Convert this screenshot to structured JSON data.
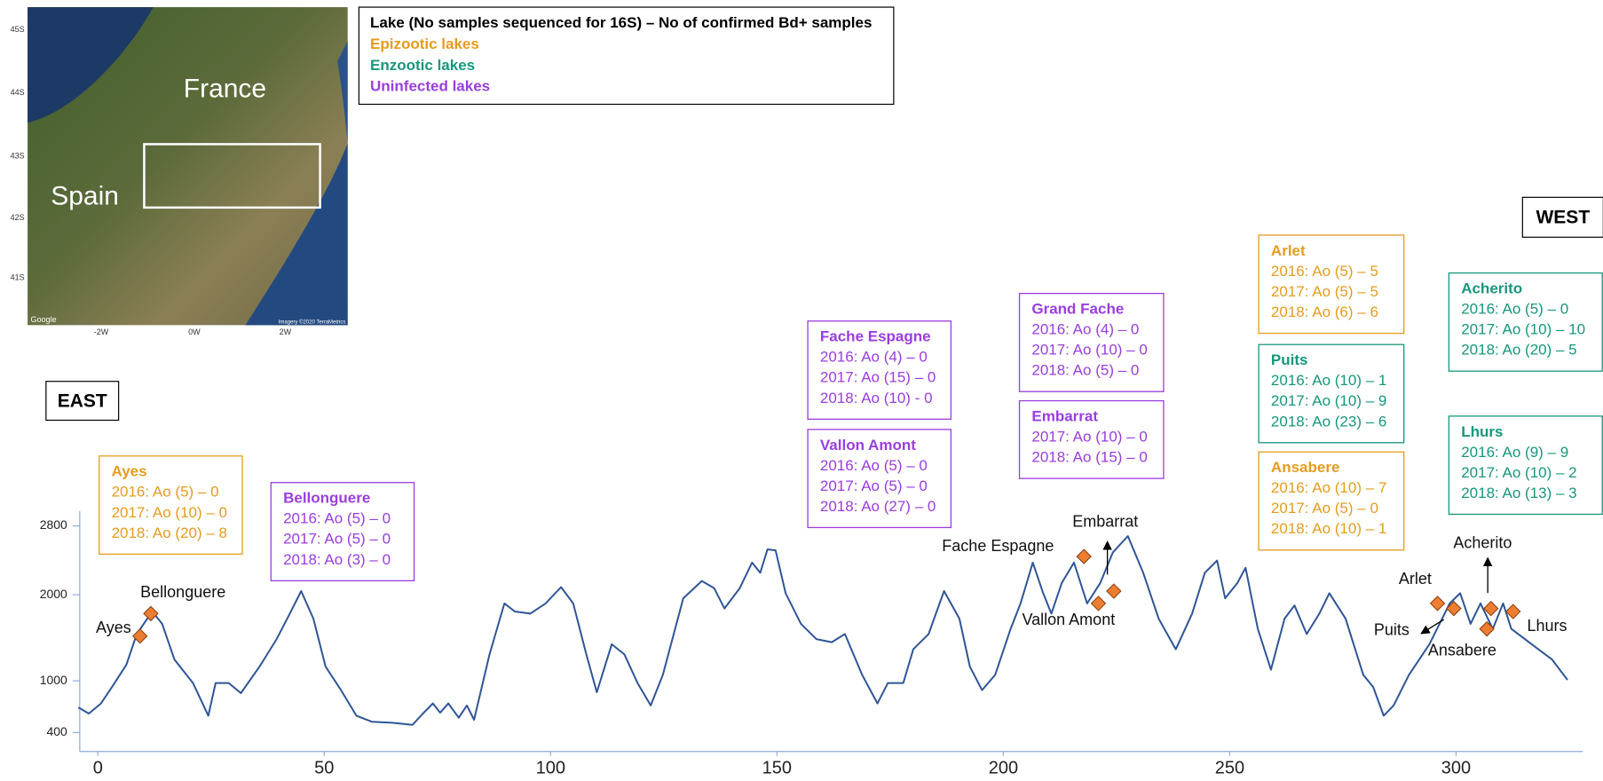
{
  "map": {
    "countries": [
      "France",
      "Spain"
    ],
    "lat_ticks": [
      "45S",
      "44S",
      "43S",
      "42S",
      "41S"
    ],
    "lon_ticks": [
      "-2W",
      "0W",
      "2W"
    ],
    "attribution": [
      "Google",
      "Imagery ©2020 TerraMetrics"
    ]
  },
  "legend": {
    "title": "Lake (No samples sequenced for 16S) – No of confirmed Bd+ samples",
    "items": [
      {
        "label": "Epizootic lakes",
        "color": "#e59c1f"
      },
      {
        "label": "Enzootic lakes",
        "color": "#17977c"
      },
      {
        "label": "Uninfected lakes",
        "color": "#9b3de0"
      }
    ]
  },
  "directions": {
    "east": "EAST",
    "west": "WEST"
  },
  "lakes": [
    {
      "name": "Ayes",
      "color": "#e59c1f",
      "lines": [
        "2016: Ao (5) – 0",
        "2017: Ao (10) – 0",
        "2018: Ao (20) – 8"
      ]
    },
    {
      "name": "Bellonguere",
      "color": "#9b3de0",
      "lines": [
        "2016: Ao (5) – 0",
        "2017: Ao (5) – 0",
        "2018: Ao (3) – 0"
      ]
    },
    {
      "name": "Fache Espagne",
      "color": "#9b3de0",
      "lines": [
        "2016: Ao (4) – 0",
        "2017: Ao (15) – 0",
        "2018: Ao (10) - 0"
      ]
    },
    {
      "name": "Vallon Amont",
      "color": "#9b3de0",
      "lines": [
        "2016: Ao (5) – 0",
        "2017: Ao (5) – 0",
        "2018: Ao (27) – 0"
      ]
    },
    {
      "name": "Grand Fache",
      "color": "#9b3de0",
      "lines": [
        "2016: Ao (4) – 0",
        "2017: Ao (10) – 0",
        "2018: Ao (5) – 0"
      ]
    },
    {
      "name": "Embarrat",
      "color": "#9b3de0",
      "lines": [
        "2017: Ao (10) – 0",
        "2018: Ao (15) – 0"
      ]
    },
    {
      "name": "Arlet",
      "color": "#e59c1f",
      "lines": [
        "2016: Ao (5) – 5",
        "2017: Ao (5) – 5",
        "2018: Ao (6) – 6"
      ]
    },
    {
      "name": "Puits",
      "color": "#17977c",
      "lines": [
        "2016: Ao (10) – 1",
        "2017: Ao (10) – 9",
        "2018: Ao (23) – 6"
      ]
    },
    {
      "name": "Ansabere",
      "color": "#e59c1f",
      "lines": [
        "2016: Ao (10) – 7",
        "2017: Ao (5) – 0",
        "2018: Ao (10) – 1"
      ]
    },
    {
      "name": "Acherito",
      "color": "#17977c",
      "lines": [
        "2016: Ao (5) – 0",
        "2017: Ao (10) – 10",
        "2018: Ao (20) – 5"
      ]
    },
    {
      "name": "Lhurs",
      "color": "#17977c",
      "lines": [
        "2016: Ao (9) – 9",
        "2017: Ao (10) – 2",
        "2018: Ao (13) – 3"
      ]
    }
  ],
  "chart_data": {
    "type": "line",
    "xlim": [
      -4,
      328
    ],
    "ylim": [
      180,
      2970
    ],
    "xticks": [
      0,
      50,
      100,
      150,
      200,
      250,
      300
    ],
    "yticks": [
      400,
      1000,
      2000,
      2800
    ],
    "series": [
      {
        "color": "#2f5597",
        "x": [
          -4.3,
          -2.0,
          0.7,
          3.4,
          6.3,
          8.6,
          12.0,
          14.2,
          16.9,
          21.0,
          24.4,
          26.0,
          28.9,
          31.6,
          35.7,
          39.5,
          42.4,
          44.9,
          47.6,
          50.3,
          53.7,
          57.1,
          60.5,
          65.0,
          69.5,
          71.8,
          74.0,
          75.6,
          77.4,
          79.7,
          81.5,
          83.1,
          86.5,
          89.8,
          92.1,
          95.5,
          98.9,
          102.3,
          105.0,
          107.9,
          110.2,
          113.5,
          116.3,
          119.2,
          122.1,
          124.8,
          126.6,
          129.3,
          133.4,
          136.1,
          138.4,
          141.8,
          144.5,
          146.3,
          147.9,
          149.7,
          151.9,
          155.3,
          158.7,
          162.1,
          165.0,
          168.8,
          172.2,
          174.5,
          177.9,
          180.1,
          183.5,
          186.9,
          190.3,
          192.6,
          195.3,
          198.2,
          201.6,
          203.8,
          206.5,
          208.8,
          210.6,
          212.9,
          215.6,
          218.5,
          221.4,
          224.2,
          227.5,
          230.9,
          234.3,
          238.1,
          241.7,
          244.5,
          247.2,
          249.0,
          251.7,
          253.5,
          256.2,
          259.1,
          262.1,
          264.3,
          267.0,
          269.8,
          272.0,
          275.6,
          279.5,
          281.7,
          284.0,
          286.2,
          289.6,
          294.1,
          298.6,
          300.9,
          303.2,
          305.4,
          308.1,
          310.4,
          312.2,
          316.7,
          321.2,
          324.6
        ],
        "values": [
          691,
          620,
          738,
          951,
          1188,
          1544,
          1805,
          1662,
          1248,
          975,
          596,
          975,
          975,
          857,
          1165,
          1485,
          1781,
          2042,
          1722,
          1165,
          892,
          596,
          525,
          513,
          489,
          620,
          738,
          631,
          738,
          572,
          714,
          548,
          1307,
          1899,
          1805,
          1781,
          1899,
          2089,
          1899,
          1307,
          868,
          1425,
          1307,
          975,
          714,
          1070,
          1425,
          1959,
          2160,
          2077,
          1840,
          2077,
          2373,
          2255,
          2527,
          2516,
          2018,
          1662,
          1485,
          1449,
          1544,
          1070,
          738,
          975,
          975,
          1366,
          1544,
          2042,
          1722,
          1165,
          892,
          1070,
          1603,
          1899,
          2373,
          2018,
          1781,
          2136,
          2373,
          1899,
          2136,
          2492,
          2681,
          2255,
          1722,
          1366,
          1781,
          2255,
          2397,
          1959,
          2136,
          2314,
          1603,
          1129,
          1722,
          1876,
          1544,
          1781,
          2018,
          1722,
          1070,
          928,
          596,
          714,
          1070,
          1425,
          1899,
          2018,
          1662,
          1899,
          1603,
          1899,
          1603,
          1425,
          1248,
          1011
        ]
      },
      {
        "color": "#ed7d31",
        "names": [
          "Ayes",
          "Bellonguere",
          "Fache Espagne",
          "Vallon Amont",
          "Embarrat",
          "Arlet",
          "Puits",
          "Ansabere",
          "Acherito",
          "Lhurs"
        ],
        "x": [
          9.3,
          11.7,
          217.8,
          221.0,
          224.4,
          295.9,
          299.5,
          306.8,
          307.7,
          312.6
        ],
        "values": [
          1520,
          1781,
          2444,
          1899,
          2042,
          1899,
          1840,
          1603,
          1840,
          1805
        ]
      }
    ]
  }
}
